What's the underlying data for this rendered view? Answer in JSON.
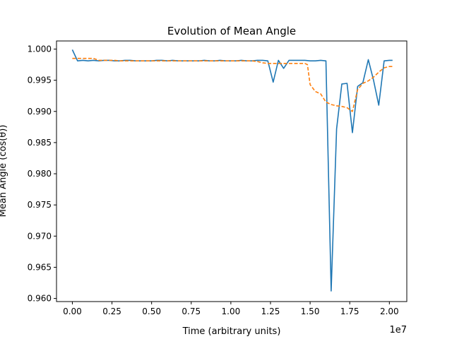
{
  "chart_data": {
    "type": "line",
    "title": "Evolution of Mean Angle",
    "xlabel": "Time (arbitrary units)",
    "ylabel": "Mean Angle (cos(θ))",
    "x_scale_label": "1e7",
    "xlim": [
      -0.1,
      2.11
    ],
    "ylim": [
      0.9595,
      1.0013
    ],
    "x_ticks": [
      0.0,
      0.25,
      0.5,
      0.75,
      1.0,
      1.25,
      1.5,
      1.75,
      2.0
    ],
    "x_tick_labels": [
      "0.00",
      "0.25",
      "0.50",
      "0.75",
      "1.00",
      "1.25",
      "1.50",
      "1.75",
      "2.00"
    ],
    "y_ticks": [
      0.96,
      0.965,
      0.97,
      0.975,
      0.98,
      0.985,
      0.99,
      0.995,
      1.0
    ],
    "y_tick_labels": [
      "0.960",
      "0.965",
      "0.970",
      "0.975",
      "0.980",
      "0.985",
      "0.990",
      "0.995",
      "1.000"
    ],
    "grid": false,
    "legend": "none",
    "series": [
      {
        "color": "#1f77b4",
        "style": "solid",
        "x": [
          0.0,
          0.033,
          0.067,
          0.1,
          0.133,
          0.167,
          0.2,
          0.233,
          0.267,
          0.3,
          0.333,
          0.367,
          0.4,
          0.433,
          0.467,
          0.5,
          0.533,
          0.567,
          0.6,
          0.633,
          0.667,
          0.7,
          0.733,
          0.767,
          0.8,
          0.833,
          0.867,
          0.9,
          0.933,
          0.967,
          1.0,
          1.033,
          1.067,
          1.1,
          1.133,
          1.167,
          1.2,
          1.233,
          1.267,
          1.3,
          1.333,
          1.367,
          1.4,
          1.433,
          1.467,
          1.5,
          1.533,
          1.567,
          1.6,
          1.633,
          1.667,
          1.7,
          1.733,
          1.767,
          1.8,
          1.833,
          1.867,
          1.9,
          1.933,
          1.967,
          2.0,
          2.02
        ],
        "y": [
          0.9999,
          0.9981,
          0.9982,
          0.9981,
          0.9982,
          0.9981,
          0.9982,
          0.9982,
          0.9981,
          0.9981,
          0.9982,
          0.9982,
          0.9981,
          0.9981,
          0.9981,
          0.9981,
          0.9982,
          0.9982,
          0.9981,
          0.9982,
          0.9981,
          0.9981,
          0.9981,
          0.9981,
          0.9981,
          0.9982,
          0.9981,
          0.9981,
          0.9982,
          0.9981,
          0.9981,
          0.9981,
          0.9982,
          0.9981,
          0.9981,
          0.9982,
          0.9982,
          0.9981,
          0.9947,
          0.9982,
          0.9969,
          0.9982,
          0.9982,
          0.9982,
          0.9982,
          0.9981,
          0.9981,
          0.9982,
          0.9981,
          0.9612,
          0.9872,
          0.9944,
          0.9945,
          0.9866,
          0.994,
          0.9946,
          0.9983,
          0.995,
          0.991,
          0.9981,
          0.9982,
          0.9982
        ]
      },
      {
        "color": "#ff7f0e",
        "style": "dashed",
        "x": [
          0.0,
          0.033,
          0.067,
          0.1,
          0.133,
          0.167,
          0.2,
          0.233,
          0.267,
          0.3,
          0.333,
          0.367,
          0.4,
          0.433,
          0.467,
          0.5,
          0.533,
          0.567,
          0.6,
          0.633,
          0.667,
          0.7,
          0.733,
          0.767,
          0.8,
          0.833,
          0.867,
          0.9,
          0.933,
          0.967,
          1.0,
          1.033,
          1.067,
          1.1,
          1.133,
          1.167,
          1.2,
          1.233,
          1.267,
          1.3,
          1.333,
          1.367,
          1.4,
          1.433,
          1.467,
          1.483,
          1.5,
          1.533,
          1.567,
          1.6,
          1.633,
          1.667,
          1.7,
          1.733,
          1.767,
          1.8,
          1.833,
          1.867,
          1.9,
          1.933,
          1.967,
          2.0,
          2.02
        ],
        "y": [
          0.9985,
          0.9985,
          0.9985,
          0.9985,
          0.9985,
          0.9982,
          0.9982,
          0.9982,
          0.9982,
          0.9981,
          0.9981,
          0.9981,
          0.9981,
          0.9981,
          0.9981,
          0.9981,
          0.9981,
          0.9981,
          0.9981,
          0.9981,
          0.9981,
          0.9981,
          0.9981,
          0.9981,
          0.9981,
          0.9981,
          0.9981,
          0.9981,
          0.9981,
          0.9981,
          0.9981,
          0.9981,
          0.9981,
          0.9981,
          0.9981,
          0.998,
          0.9978,
          0.9977,
          0.9977,
          0.9977,
          0.9977,
          0.9977,
          0.9977,
          0.9977,
          0.9977,
          0.9975,
          0.9943,
          0.9932,
          0.9928,
          0.9915,
          0.9911,
          0.9909,
          0.9908,
          0.9906,
          0.99,
          0.9935,
          0.9945,
          0.9949,
          0.9955,
          0.9963,
          0.997,
          0.9972,
          0.9972
        ]
      }
    ]
  }
}
